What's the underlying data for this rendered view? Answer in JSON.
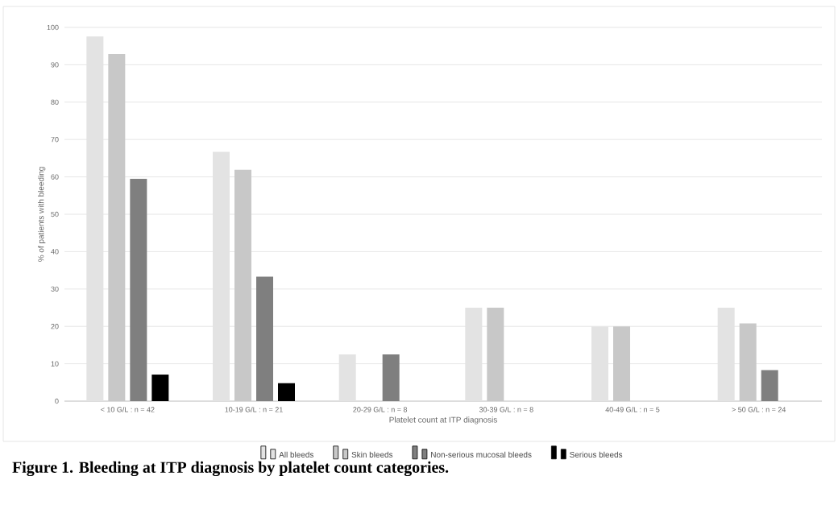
{
  "chart_data": {
    "type": "bar",
    "title": "Figure 1. Bleeding at ITP diagnosis by platelet count categories.",
    "xlabel": "Platelet count at ITP diagnosis",
    "ylabel": "% of patients with bleeding",
    "categories": [
      "< 10 G/L : n = 42",
      "10-19 G/L : n = 21",
      "20-29 G/L : n = 8",
      "30-39 G/L : n = 8",
      "40-49 G/L : n = 5",
      "> 50 G/L : n = 24"
    ],
    "series": [
      {
        "name": "All bleeds",
        "color": "#e3e3e3",
        "values": [
          97.6,
          66.7,
          12.5,
          25,
          20,
          25
        ]
      },
      {
        "name": "Skin bleeds",
        "color": "#c8c8c8",
        "values": [
          92.9,
          61.9,
          0,
          25,
          20,
          20.8
        ]
      },
      {
        "name": "Non-serious mucosal bleeds",
        "color": "#7f7f7f",
        "values": [
          59.5,
          33.3,
          12.5,
          0,
          0,
          8.3
        ]
      },
      {
        "name": "Serious bleeds",
        "color": "#000000",
        "values": [
          7.1,
          4.8,
          0,
          0,
          0,
          0
        ]
      }
    ],
    "ylim": [
      0,
      100
    ],
    "yticks": [
      0,
      10,
      20,
      30,
      40,
      50,
      60,
      70,
      80,
      90,
      100
    ],
    "grid": "y",
    "legend": "bottom"
  }
}
